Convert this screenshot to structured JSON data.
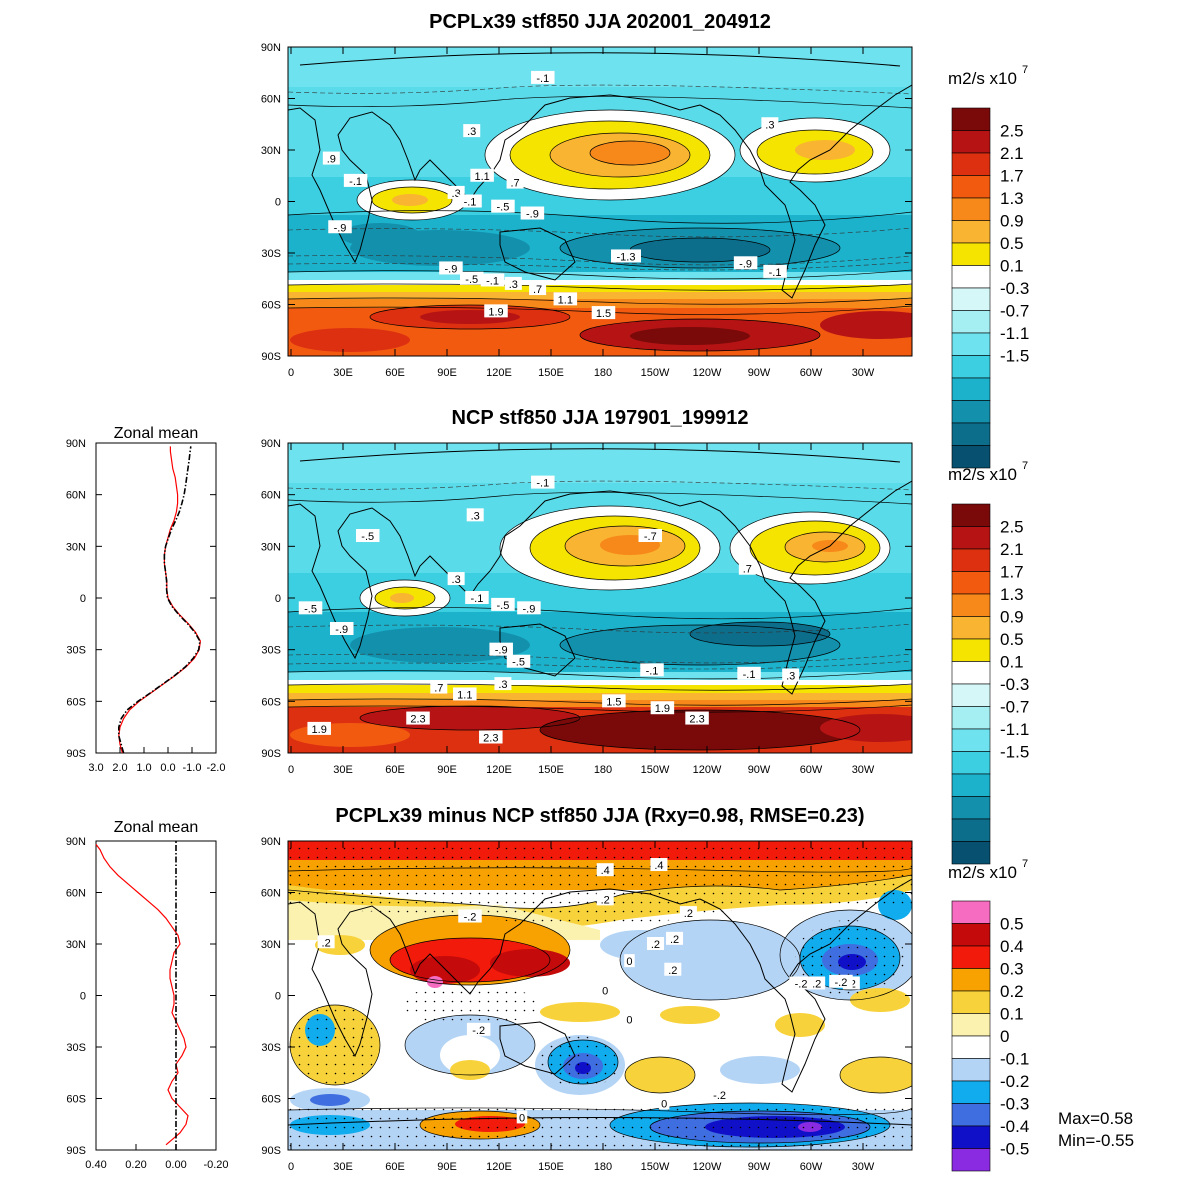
{
  "chart_data": [
    {
      "type": "contour-map",
      "panel": "top",
      "title": "PCPLx39 stf850 JJA 202001_204912",
      "units_label": "m2/s x10",
      "units_exponent": "7",
      "lat_ticks": [
        "90N",
        "60N",
        "30N",
        "0",
        "30S",
        "60S",
        "90S"
      ],
      "lon_ticks": [
        "0",
        "30E",
        "60E",
        "90E",
        "120E",
        "150E",
        "180",
        "150W",
        "120W",
        "90W",
        "60W",
        "30W"
      ],
      "colorbar_labels": [
        "2.5",
        "2.1",
        "1.7",
        "1.3",
        "0.9",
        "0.5",
        "0.1",
        "-0.3",
        "-0.7",
        "-1.1",
        "-1.5"
      ],
      "colorbar_colors": [
        "#7a0a0a",
        "#b61414",
        "#dd3010",
        "#f25a10",
        "#f7881a",
        "#f9b432",
        "#f5e400",
        "#ffffff",
        "#d5f7f7",
        "#a5eef2",
        "#6ee2ee",
        "#3ccfe2",
        "#1cb2cc",
        "#1390ac",
        "#0d6e8c",
        "#075070"
      ],
      "contour_labels": [
        {
          "text": "-.1",
          "lon": 147,
          "lat": 72
        },
        {
          "text": ".3",
          "lon": 106,
          "lat": 41
        },
        {
          "text": ".3",
          "lon": -82,
          "lat": 45
        },
        {
          "text": "1.1",
          "lon": 112,
          "lat": 15
        },
        {
          "text": ".7",
          "lon": 131,
          "lat": 11
        },
        {
          "text": "-.1",
          "lon": 39,
          "lat": 12
        },
        {
          "text": ".3",
          "lon": 97,
          "lat": 5
        },
        {
          "text": "-.1",
          "lon": 105,
          "lat": 0
        },
        {
          "text": "-.5",
          "lon": 124,
          "lat": -3
        },
        {
          "text": "-.9",
          "lon": 141,
          "lat": -7
        },
        {
          "text": "-.9",
          "lon": 30,
          "lat": -15
        },
        {
          "text": "-1.3",
          "lon": -165,
          "lat": -32
        },
        {
          "text": "-.9",
          "lon": 94,
          "lat": -39
        },
        {
          "text": "-.5",
          "lon": 106,
          "lat": -45
        },
        {
          "text": "-.1",
          "lon": 118,
          "lat": -46
        },
        {
          "text": ".3",
          "lon": 130,
          "lat": -48
        },
        {
          "text": ".7",
          "lon": 144,
          "lat": -51
        },
        {
          "text": "1.1",
          "lon": 160,
          "lat": -57
        },
        {
          "text": "1.5",
          "lon": -178,
          "lat": -65
        },
        {
          "text": "1.9",
          "lon": 120,
          "lat": -64
        },
        {
          "text": "-.9",
          "lon": -96,
          "lat": -36
        },
        {
          "text": "-.1",
          "lon": -79,
          "lat": -41
        },
        {
          "text": ".9",
          "lon": 25,
          "lat": 25
        }
      ]
    },
    {
      "type": "contour-map",
      "panel": "middle",
      "title": "NCP stf850 JJA 197901_199912",
      "units_label": "m2/s x10",
      "units_exponent": "7",
      "lat_ticks": [
        "90N",
        "60N",
        "30N",
        "0",
        "30S",
        "60S",
        "90S"
      ],
      "lon_ticks": [
        "0",
        "30E",
        "60E",
        "90E",
        "120E",
        "150E",
        "180",
        "150W",
        "120W",
        "90W",
        "60W",
        "30W"
      ],
      "colorbar_labels": [
        "2.5",
        "2.1",
        "1.7",
        "1.3",
        "0.9",
        "0.5",
        "0.1",
        "-0.3",
        "-0.7",
        "-1.1",
        "-1.5"
      ],
      "colorbar_colors": [
        "#7a0a0a",
        "#b61414",
        "#dd3010",
        "#f25a10",
        "#f7881a",
        "#f9b432",
        "#f5e400",
        "#ffffff",
        "#d5f7f7",
        "#a5eef2",
        "#6ee2ee",
        "#3ccfe2",
        "#1cb2cc",
        "#1390ac",
        "#0d6e8c",
        "#075070"
      ],
      "contour_labels": [
        {
          "text": "-.1",
          "lon": 147,
          "lat": 67
        },
        {
          "text": ".3",
          "lon": 108,
          "lat": 48
        },
        {
          "text": "-.5",
          "lon": 46,
          "lat": 36
        },
        {
          "text": "-.7",
          "lon": -151,
          "lat": 36
        },
        {
          "text": ".7",
          "lon": -95,
          "lat": 17
        },
        {
          "text": ".3",
          "lon": 97,
          "lat": 11
        },
        {
          "text": "-.1",
          "lon": 109,
          "lat": 0
        },
        {
          "text": "-.5",
          "lon": 124,
          "lat": -4
        },
        {
          "text": "-.9",
          "lon": 139,
          "lat": -6
        },
        {
          "text": "-.5",
          "lon": 13,
          "lat": -6
        },
        {
          "text": "-.9",
          "lon": 31,
          "lat": -18
        },
        {
          "text": "-.9",
          "lon": 123,
          "lat": -30
        },
        {
          "text": "-.5",
          "lon": 133,
          "lat": -37
        },
        {
          "text": "-.1",
          "lon": -150,
          "lat": -42
        },
        {
          "text": ".3",
          "lon": 124,
          "lat": -50
        },
        {
          "text": ".7",
          "lon": 87,
          "lat": -52
        },
        {
          "text": "1.1",
          "lon": 102,
          "lat": -56
        },
        {
          "text": "1.5",
          "lon": -172,
          "lat": -60
        },
        {
          "text": "1.9",
          "lon": -144,
          "lat": -64
        },
        {
          "text": "2.3",
          "lon": -124,
          "lat": -70
        },
        {
          "text": "2.3",
          "lon": 75,
          "lat": -70
        },
        {
          "text": "1.9",
          "lon": 18,
          "lat": -76
        },
        {
          "text": "2.3",
          "lon": 117,
          "lat": -81
        },
        {
          "text": "-.1",
          "lon": -94,
          "lat": -44
        },
        {
          "text": ".3",
          "lon": -70,
          "lat": -45
        }
      ]
    },
    {
      "type": "line",
      "panel": "middle-zonal-mean",
      "title": "Zonal mean",
      "x_ticks": [
        "3.0",
        "2.0",
        "1.0",
        "0.0",
        "-1.0",
        "-2.0"
      ],
      "xlim": [
        3,
        -2
      ],
      "lat_ticks": [
        "90N",
        "60N",
        "30N",
        "0",
        "30S",
        "60S",
        "90S"
      ],
      "series": [
        {
          "name": "PCPLx39",
          "color": "#ff0000",
          "dash": "solid",
          "lat": [
            -90,
            -85,
            -80,
            -75,
            -70,
            -65,
            -60,
            -55,
            -50,
            -45,
            -40,
            -35,
            -30,
            -25,
            -20,
            -15,
            -10,
            -5,
            0,
            5,
            10,
            15,
            20,
            25,
            30,
            35,
            40,
            45,
            50,
            55,
            60,
            65,
            70,
            75,
            80,
            85,
            88
          ],
          "values": [
            1.9,
            2.0,
            2.05,
            2.0,
            1.85,
            1.6,
            1.2,
            0.7,
            0.2,
            -0.3,
            -0.75,
            -1.1,
            -1.3,
            -1.35,
            -1.15,
            -0.85,
            -0.5,
            -0.2,
            0.0,
            0.05,
            0.05,
            0.1,
            0.15,
            0.15,
            0.1,
            0.0,
            -0.1,
            -0.25,
            -0.35,
            -0.4,
            -0.4,
            -0.35,
            -0.3,
            -0.2,
            -0.15,
            -0.1,
            -0.1
          ]
        },
        {
          "name": "NCP",
          "color": "#000000",
          "dash": "dash-dot",
          "lat": [
            -90,
            -85,
            -80,
            -75,
            -70,
            -65,
            -60,
            -55,
            -50,
            -45,
            -40,
            -35,
            -30,
            -25,
            -20,
            -15,
            -10,
            -5,
            0,
            5,
            10,
            15,
            20,
            25,
            30,
            35,
            40,
            45,
            50,
            55,
            60,
            65,
            70,
            75,
            80,
            85,
            88
          ],
          "values": [
            1.85,
            1.95,
            2.05,
            2.05,
            1.95,
            1.7,
            1.25,
            0.72,
            0.22,
            -0.28,
            -0.72,
            -1.05,
            -1.28,
            -1.33,
            -1.12,
            -0.82,
            -0.47,
            -0.17,
            0.02,
            0.06,
            0.06,
            0.1,
            0.15,
            0.15,
            0.1,
            -0.02,
            -0.15,
            -0.32,
            -0.47,
            -0.58,
            -0.67,
            -0.73,
            -0.78,
            -0.83,
            -0.88,
            -0.92,
            -0.95
          ]
        }
      ]
    },
    {
      "type": "contour-map",
      "panel": "bottom",
      "title": "PCPLx39 minus NCP stf850 JJA (Rxy=0.98, RMSE=0.23)",
      "units_label": "m2/s x10",
      "units_exponent": "7",
      "lat_ticks": [
        "90N",
        "60N",
        "30N",
        "0",
        "30S",
        "60S",
        "90S"
      ],
      "lon_ticks": [
        "0",
        "30E",
        "60E",
        "90E",
        "120E",
        "150E",
        "180",
        "150W",
        "120W",
        "90W",
        "60W",
        "30W"
      ],
      "colorbar_labels": [
        "0.5",
        "0.4",
        "0.3",
        "0.2",
        "0.1",
        "0",
        "-0.1",
        "-0.2",
        "-0.3",
        "-0.4",
        "-0.5"
      ],
      "colorbar_colors": [
        "#f56cc0",
        "#c40a0a",
        "#f21a0a",
        "#f7a200",
        "#f7d23a",
        "#fbf2b0",
        "#ffffff",
        "#b4d4f5",
        "#10acee",
        "#3e6ee0",
        "#1010c8",
        "#8a2be2"
      ],
      "contour_labels": [
        {
          "text": ".4",
          "lon": -177,
          "lat": 73
        },
        {
          "text": ".4",
          "lon": -146,
          "lat": 76
        },
        {
          "text": ".2",
          "lon": -177,
          "lat": 56
        },
        {
          "text": ".2",
          "lon": -129,
          "lat": 48
        },
        {
          "text": "-.2",
          "lon": 105,
          "lat": 46
        },
        {
          "text": ".2",
          "lon": -137,
          "lat": 33
        },
        {
          "text": ".2",
          "lon": -148,
          "lat": 30
        },
        {
          "text": ".2",
          "lon": -138,
          "lat": 15
        },
        {
          "text": ".2",
          "lon": 22,
          "lat": 31
        },
        {
          "text": "0",
          "lon": -163,
          "lat": 20
        },
        {
          "text": "0",
          "lon": -177,
          "lat": 3
        },
        {
          "text": ".2",
          "lon": -55,
          "lat": 7
        },
        {
          "text": "-.2",
          "lon": -64,
          "lat": 7
        },
        {
          "text": ".2",
          "lon": -35,
          "lat": 7
        },
        {
          "text": "-.2",
          "lon": -41,
          "lat": 8
        },
        {
          "text": "0",
          "lon": -163,
          "lat": -14
        },
        {
          "text": "-.2",
          "lon": 110,
          "lat": -20
        },
        {
          "text": "0",
          "lon": -143,
          "lat": -63
        },
        {
          "text": "-.2",
          "lon": -111,
          "lat": -58
        },
        {
          "text": "0",
          "lon": 135,
          "lat": -71
        }
      ],
      "stats": {
        "max": "Max=0.58",
        "min": "Min=-0.55"
      }
    },
    {
      "type": "line",
      "panel": "bottom-zonal-mean",
      "title": "Zonal mean",
      "x_ticks": [
        "0.40",
        "0.20",
        "0.00",
        "-0.20"
      ],
      "xlim": [
        0.4,
        -0.2
      ],
      "lat_ticks": [
        "90N",
        "60N",
        "30N",
        "0",
        "30S",
        "60S",
        "90S"
      ],
      "series": [
        {
          "name": "PCPLx39 minus NCP",
          "color": "#ff0000",
          "dash": "solid",
          "lat": [
            -87,
            -84,
            -80,
            -75,
            -70,
            -65,
            -60,
            -55,
            -50,
            -45,
            -40,
            -35,
            -30,
            -25,
            -20,
            -15,
            -10,
            -5,
            0,
            5,
            10,
            15,
            20,
            25,
            30,
            35,
            40,
            45,
            50,
            55,
            60,
            65,
            70,
            75,
            80,
            85,
            88
          ],
          "values": [
            0.05,
            0.02,
            -0.02,
            -0.05,
            -0.06,
            -0.02,
            0.02,
            0.04,
            0.02,
            -0.01,
            0.0,
            -0.03,
            -0.05,
            -0.04,
            -0.02,
            0.0,
            0.02,
            0.01,
            0.01,
            0.02,
            0.03,
            0.03,
            0.02,
            0.01,
            -0.02,
            -0.01,
            0.02,
            0.05,
            0.09,
            0.14,
            0.19,
            0.24,
            0.29,
            0.33,
            0.36,
            0.38,
            0.4
          ]
        },
        {
          "name": "zero",
          "color": "#000000",
          "dash": "dash-dot",
          "lat": [
            -90,
            90
          ],
          "values": [
            0,
            0
          ]
        }
      ]
    }
  ]
}
